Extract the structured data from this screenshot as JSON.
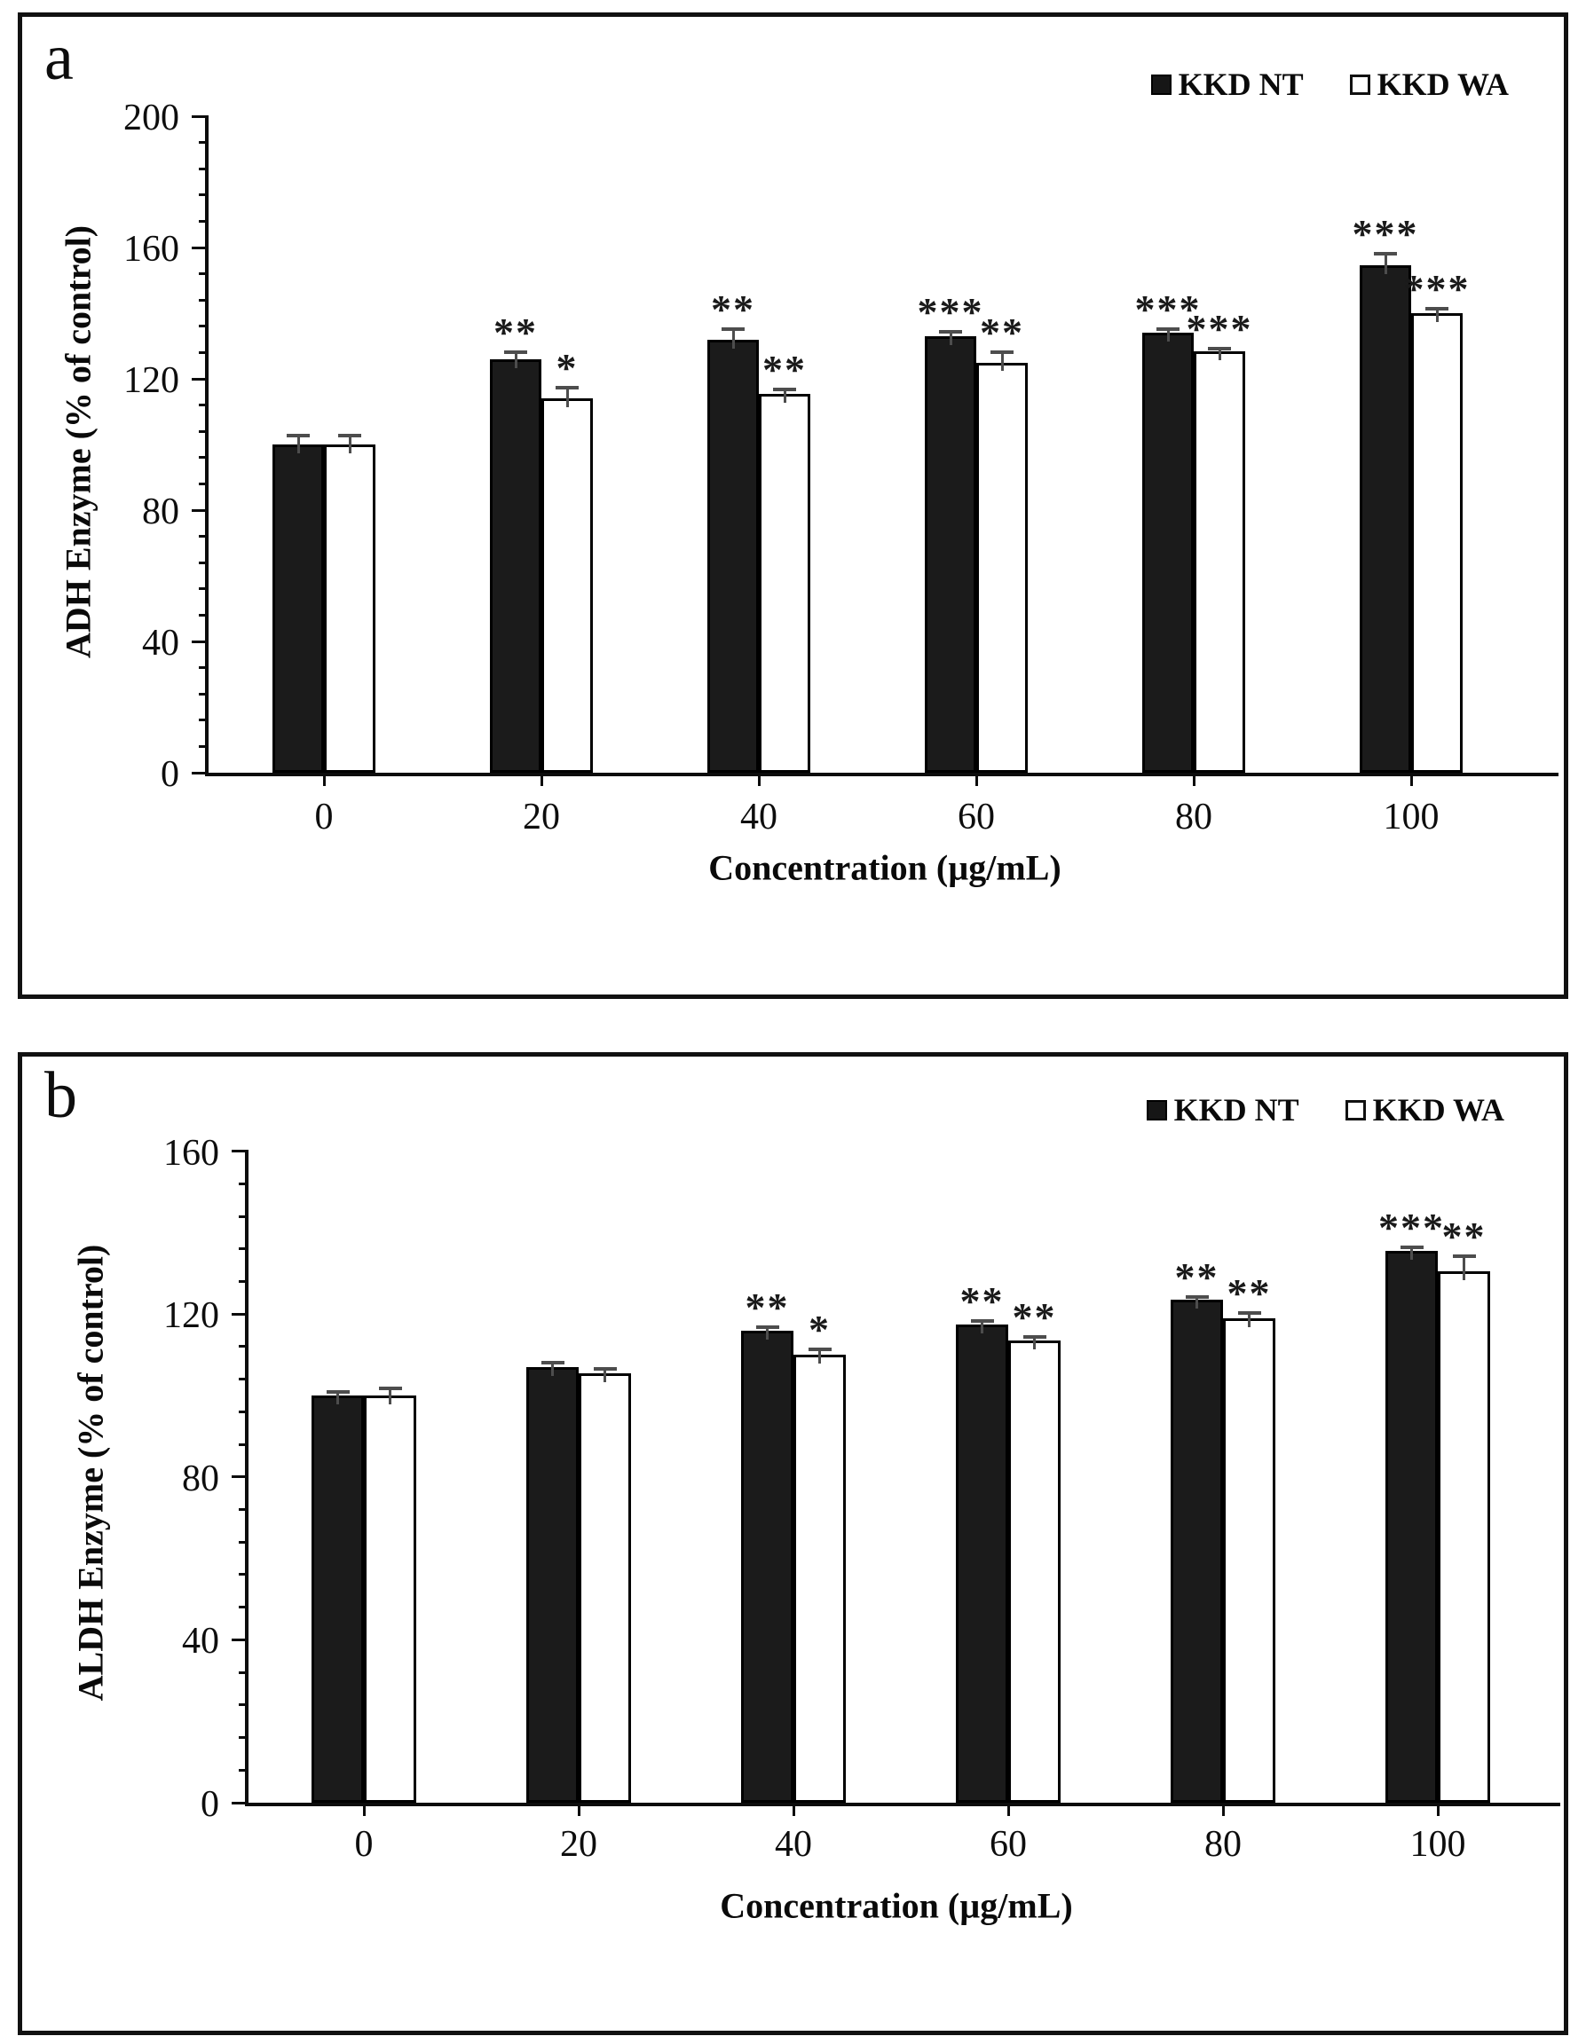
{
  "colors": {
    "bar_dark_fill": "#1b1b1b",
    "bar_light_fill": "#ffffff",
    "bar_border": "#000000",
    "error_bar": "#4d4d4d",
    "axis": "#0c0c0c",
    "frame_border": "#111111",
    "background": "#ffffff"
  },
  "chart_data": [
    {
      "id": "a",
      "panel_label": "a",
      "type": "bar",
      "title": "",
      "xlabel": "Concentration (µg/mL)",
      "ylabel": "ADH Enzyme (% of control)",
      "categories": [
        0,
        20,
        40,
        60,
        80,
        100
      ],
      "xtick_labels": [
        "0",
        "20",
        "40",
        "60",
        "80",
        "100"
      ],
      "ylim": [
        0,
        200
      ],
      "yticks": [
        0,
        40,
        80,
        120,
        160,
        200
      ],
      "ytick_minor_step": 8,
      "grid": false,
      "legend_position": "top-right",
      "series": [
        {
          "name": "KKD NT",
          "fill": "dark",
          "values": [
            100,
            126,
            132,
            133,
            134,
            154.5
          ],
          "errors": [
            3,
            2.5,
            3.5,
            1.5,
            1.5,
            4
          ],
          "significance": [
            "",
            "**",
            "**",
            "***",
            "***",
            "***"
          ]
        },
        {
          "name": "KKD WA",
          "fill": "light",
          "values": [
            100,
            114,
            115.5,
            125,
            128.5,
            140
          ],
          "errors": [
            3,
            3.5,
            1.5,
            3.5,
            1,
            1.5
          ],
          "significance": [
            "",
            "*",
            "**",
            "**",
            "***",
            "***"
          ]
        }
      ]
    },
    {
      "id": "b",
      "panel_label": "b",
      "type": "bar",
      "title": "",
      "xlabel": "Concentration (µg/mL)",
      "ylabel": "ALDH Enzyme (% of control)",
      "categories": [
        0,
        20,
        40,
        60,
        80,
        100
      ],
      "xtick_labels": [
        "0",
        "20",
        "40",
        "60",
        "80",
        "100"
      ],
      "ylim": [
        0,
        160
      ],
      "yticks": [
        0,
        40,
        80,
        120,
        160
      ],
      "ytick_minor_step": 8,
      "grid": false,
      "legend_position": "top-right",
      "series": [
        {
          "name": "KKD NT",
          "fill": "dark",
          "values": [
            100,
            107,
            116,
            117.5,
            123.5,
            135.5
          ],
          "errors": [
            1,
            1.2,
            1,
            1,
            1,
            1
          ],
          "significance": [
            "",
            "",
            "**",
            "**",
            "**",
            "***"
          ]
        },
        {
          "name": "KKD WA",
          "fill": "light",
          "values": [
            100,
            105.5,
            110,
            113.5,
            119,
            130.5
          ],
          "errors": [
            2,
            1.2,
            1.5,
            1.2,
            1.5,
            4
          ],
          "significance": [
            "",
            "",
            "*",
            "**",
            "**",
            "**"
          ]
        }
      ]
    }
  ]
}
